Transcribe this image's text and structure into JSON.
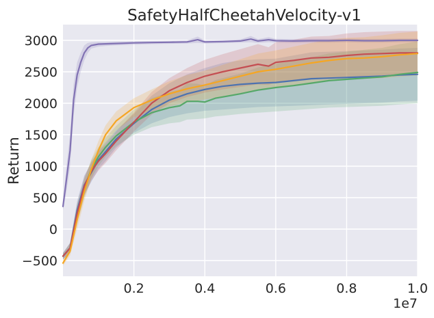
{
  "chart_data": {
    "type": "line",
    "title": "SafetyHalfCheetahVelocity-v1",
    "xlabel": "",
    "ylabel": "Return",
    "x_offset_label": "1e7",
    "xlim": [
      0.0,
      1.0
    ],
    "ylim": [
      -750,
      3250
    ],
    "xticks": [
      0.2,
      0.4,
      0.6,
      0.8,
      1.0
    ],
    "xtick_labels": [
      "0.2",
      "0.4",
      "0.6",
      "0.8",
      "1.0"
    ],
    "yticks": [
      -500,
      0,
      500,
      1000,
      1500,
      2000,
      2500,
      3000
    ],
    "ytick_labels": [
      "−500",
      "0",
      "500",
      "1000",
      "1500",
      "2000",
      "2500",
      "3000"
    ],
    "grid": true,
    "background": "#e8e8f0",
    "series": [
      {
        "name": "purple",
        "color": "#8172b3",
        "x": [
          0.0,
          0.01,
          0.02,
          0.03,
          0.04,
          0.05,
          0.06,
          0.07,
          0.08,
          0.1,
          0.12,
          0.15,
          0.2,
          0.25,
          0.3,
          0.35,
          0.38,
          0.4,
          0.45,
          0.5,
          0.53,
          0.55,
          0.58,
          0.6,
          0.65,
          0.7,
          0.75,
          0.8,
          0.85,
          0.9,
          0.95,
          1.0
        ],
        "values": [
          360,
          800,
          1250,
          2050,
          2450,
          2650,
          2800,
          2880,
          2920,
          2940,
          2945,
          2950,
          2960,
          2965,
          2970,
          2975,
          3010,
          2975,
          2980,
          2990,
          3020,
          2990,
          3010,
          2995,
          2990,
          2995,
          2995,
          3000,
          2995,
          2995,
          3000,
          3000
        ],
        "lower": [
          300,
          600,
          1000,
          1800,
          2250,
          2500,
          2680,
          2800,
          2870,
          2900,
          2910,
          2920,
          2930,
          2940,
          2945,
          2950,
          2960,
          2950,
          2955,
          2965,
          2970,
          2960,
          2970,
          2965,
          2960,
          2965,
          2965,
          2970,
          2965,
          2965,
          2970,
          2970
        ],
        "upper": [
          420,
          1000,
          1500,
          2300,
          2650,
          2800,
          2920,
          2960,
          2970,
          2975,
          2975,
          2980,
          2985,
          2990,
          2995,
          3000,
          3060,
          3000,
          3005,
          3015,
          3070,
          3020,
          3050,
          3025,
          3020,
          3025,
          3025,
          3030,
          3025,
          3025,
          3030,
          3030
        ]
      },
      {
        "name": "blue",
        "color": "#4c72b0",
        "x": [
          0.0,
          0.02,
          0.04,
          0.06,
          0.08,
          0.1,
          0.12,
          0.15,
          0.2,
          0.25,
          0.3,
          0.35,
          0.4,
          0.45,
          0.5,
          0.55,
          0.6,
          0.65,
          0.7,
          0.75,
          0.8,
          0.85,
          0.9,
          0.95,
          1.0
        ],
        "values": [
          -430,
          -300,
          300,
          700,
          900,
          1100,
          1230,
          1430,
          1680,
          1900,
          2050,
          2150,
          2220,
          2270,
          2300,
          2320,
          2330,
          2360,
          2390,
          2400,
          2410,
          2420,
          2430,
          2450,
          2460
        ],
        "lower": [
          -480,
          -380,
          150,
          550,
          750,
          950,
          1080,
          1290,
          1530,
          1680,
          1780,
          1840,
          1880,
          1900,
          1920,
          1940,
          1950,
          1960,
          1970,
          1980,
          1990,
          2000,
          2010,
          2030,
          2040
        ],
        "upper": [
          -380,
          -220,
          450,
          850,
          1050,
          1250,
          1380,
          1570,
          1830,
          2120,
          2320,
          2460,
          2560,
          2640,
          2680,
          2700,
          2710,
          2760,
          2810,
          2820,
          2830,
          2840,
          2850,
          2870,
          2880
        ]
      },
      {
        "name": "green",
        "color": "#55a868",
        "x": [
          0.0,
          0.02,
          0.04,
          0.06,
          0.08,
          0.1,
          0.12,
          0.15,
          0.2,
          0.25,
          0.3,
          0.33,
          0.35,
          0.38,
          0.4,
          0.43,
          0.45,
          0.5,
          0.55,
          0.6,
          0.65,
          0.7,
          0.75,
          0.8,
          0.85,
          0.9,
          0.95,
          1.0
        ],
        "values": [
          -430,
          -300,
          250,
          650,
          950,
          1150,
          1300,
          1480,
          1700,
          1850,
          1930,
          1960,
          2030,
          2030,
          2020,
          2080,
          2100,
          2150,
          2210,
          2250,
          2280,
          2320,
          2360,
          2380,
          2400,
          2420,
          2460,
          2490
        ],
        "lower": [
          -480,
          -380,
          100,
          500,
          800,
          1000,
          1150,
          1320,
          1500,
          1620,
          1680,
          1700,
          1740,
          1750,
          1760,
          1790,
          1800,
          1830,
          1850,
          1870,
          1890,
          1910,
          1930,
          1940,
          1950,
          1960,
          1980,
          2000
        ],
        "upper": [
          -380,
          -220,
          400,
          800,
          1100,
          1300,
          1450,
          1640,
          1900,
          2080,
          2180,
          2220,
          2320,
          2310,
          2280,
          2370,
          2400,
          2470,
          2570,
          2630,
          2670,
          2730,
          2790,
          2820,
          2850,
          2880,
          2940,
          2980
        ]
      },
      {
        "name": "red",
        "color": "#c44e52",
        "x": [
          0.0,
          0.02,
          0.04,
          0.06,
          0.08,
          0.1,
          0.12,
          0.15,
          0.2,
          0.25,
          0.3,
          0.35,
          0.4,
          0.45,
          0.5,
          0.55,
          0.58,
          0.6,
          0.65,
          0.7,
          0.75,
          0.8,
          0.85,
          0.9,
          0.95,
          1.0
        ],
        "values": [
          -430,
          -300,
          250,
          680,
          920,
          1080,
          1200,
          1400,
          1700,
          2000,
          2200,
          2330,
          2430,
          2500,
          2560,
          2620,
          2590,
          2650,
          2680,
          2720,
          2730,
          2760,
          2780,
          2790,
          2800,
          2800
        ],
        "lower": [
          -480,
          -380,
          100,
          530,
          770,
          930,
          1050,
          1250,
          1550,
          1820,
          2000,
          2100,
          2170,
          2220,
          2260,
          2300,
          2290,
          2330,
          2350,
          2380,
          2390,
          2410,
          2430,
          2440,
          2450,
          2450
        ],
        "upper": [
          -380,
          -220,
          400,
          830,
          1070,
          1230,
          1350,
          1550,
          1850,
          2180,
          2400,
          2560,
          2690,
          2780,
          2860,
          2940,
          2890,
          2970,
          3010,
          3060,
          3070,
          3110,
          3130,
          3140,
          3150,
          3150
        ]
      },
      {
        "name": "orange",
        "color": "#f5a623",
        "x": [
          0.0,
          0.02,
          0.04,
          0.06,
          0.08,
          0.1,
          0.12,
          0.15,
          0.2,
          0.25,
          0.3,
          0.35,
          0.4,
          0.45,
          0.5,
          0.55,
          0.6,
          0.65,
          0.7,
          0.75,
          0.8,
          0.85,
          0.9,
          0.95,
          1.0
        ],
        "values": [
          -540,
          -350,
          150,
          600,
          950,
          1250,
          1500,
          1720,
          1930,
          2050,
          2150,
          2230,
          2290,
          2360,
          2430,
          2500,
          2540,
          2590,
          2640,
          2680,
          2710,
          2720,
          2740,
          2770,
          2790
        ],
        "lower": [
          -580,
          -420,
          0,
          450,
          800,
          1100,
          1350,
          1570,
          1780,
          1880,
          1950,
          2010,
          2060,
          2110,
          2160,
          2210,
          2240,
          2280,
          2320,
          2350,
          2380,
          2390,
          2400,
          2420,
          2440
        ],
        "upper": [
          -500,
          -280,
          300,
          750,
          1100,
          1400,
          1650,
          1870,
          2080,
          2220,
          2350,
          2450,
          2520,
          2610,
          2700,
          2790,
          2840,
          2900,
          2960,
          3010,
          3040,
          3050,
          3080,
          3120,
          3140
        ]
      }
    ]
  }
}
